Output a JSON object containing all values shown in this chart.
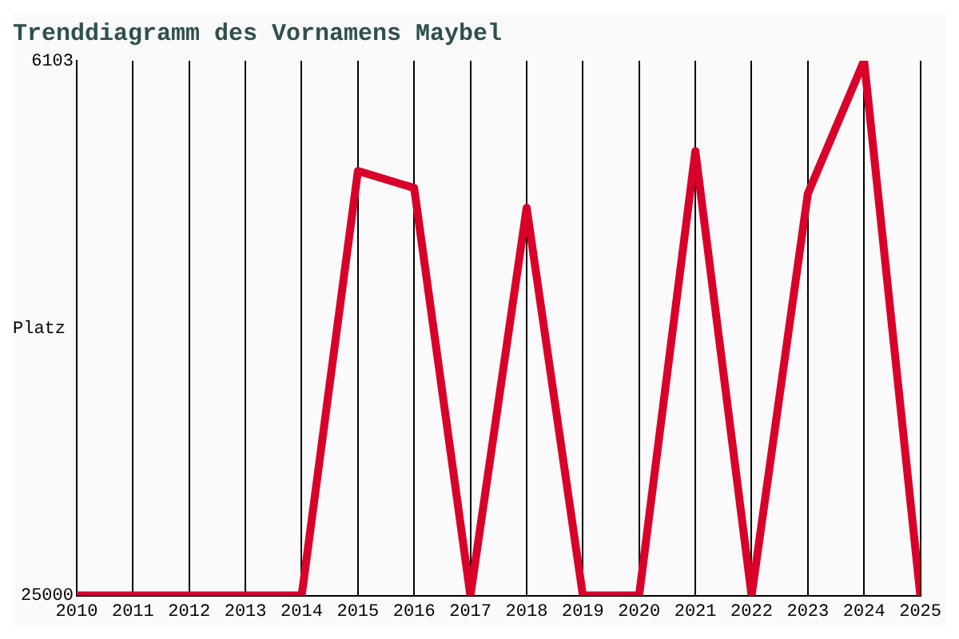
{
  "chart_data": {
    "type": "line",
    "title": "Trenddiagramm des Vornamens Maybel",
    "ylabel": "Platz",
    "x": [
      2010,
      2011,
      2012,
      2013,
      2014,
      2015,
      2016,
      2017,
      2018,
      2019,
      2020,
      2021,
      2022,
      2023,
      2024,
      2025
    ],
    "series": [
      {
        "color": "#d9002a",
        "values": [
          25000,
          25000,
          25000,
          25000,
          25000,
          10000,
          10600,
          25000,
          11300,
          25000,
          25000,
          9300,
          25000,
          10800,
          6103,
          25000
        ]
      }
    ],
    "xlim": [
      2010,
      2025
    ],
    "xticks": [
      2010,
      2011,
      2012,
      2013,
      2014,
      2015,
      2016,
      2017,
      2018,
      2019,
      2020,
      2021,
      2022,
      2023,
      2024,
      2025
    ],
    "ylim": [
      25000,
      6103
    ],
    "yticks": [
      6103,
      25000
    ],
    "grid": "x",
    "legend": false,
    "marker": "none",
    "line_style": "solid"
  }
}
